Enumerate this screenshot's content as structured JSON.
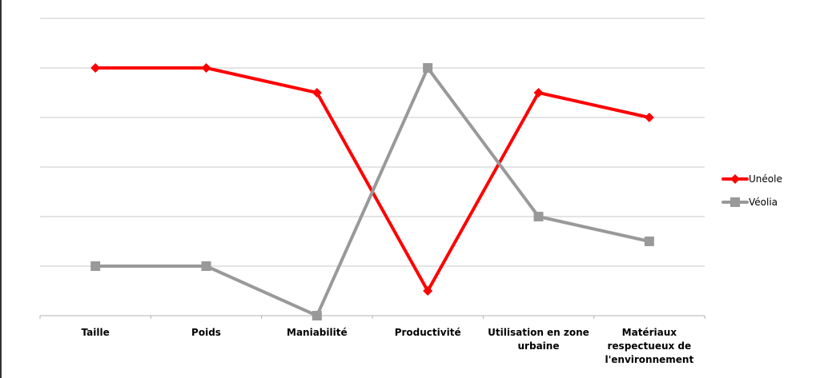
{
  "chart_data": {
    "type": "line",
    "title": "",
    "xlabel": "",
    "ylabel": "",
    "ylim": [
      0,
      6
    ],
    "grid": true,
    "legend_position": "right",
    "categories": [
      [
        "Taille"
      ],
      [
        "Poids"
      ],
      [
        "Maniabilité"
      ],
      [
        "Productivité"
      ],
      [
        "Utilisation en zone",
        "urbaine"
      ],
      [
        "Matériaux",
        "respectueux de",
        "l'environnement"
      ]
    ],
    "series": [
      {
        "name": "Unéole",
        "color": "#ff0000",
        "marker": "diamond",
        "values": [
          5,
          5,
          4.5,
          0.5,
          4.5,
          4
        ]
      },
      {
        "name": "Véolia",
        "color": "#999999",
        "marker": "square",
        "values": [
          1,
          1,
          0,
          5,
          2,
          1.5
        ]
      }
    ]
  }
}
